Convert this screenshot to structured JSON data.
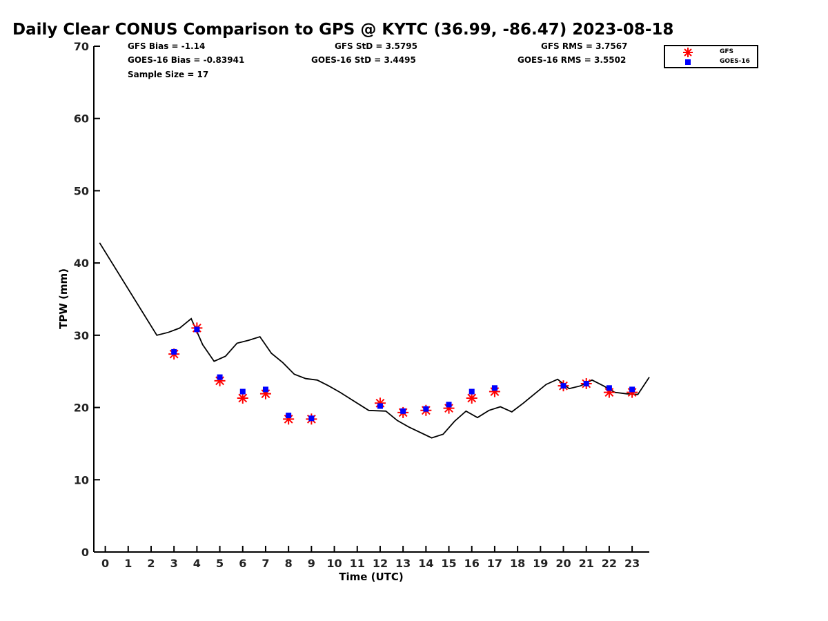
{
  "chart_data": {
    "type": "line",
    "title": "Daily Clear CONUS Comparison to GPS @ KYTC (36.99, -86.47) 2023-08-18",
    "xlabel": "Time (UTC)",
    "ylabel": "TPW (mm)",
    "xlim": [
      -0.5,
      23.75
    ],
    "ylim": [
      0,
      70
    ],
    "x_ticks": [
      0,
      1,
      2,
      3,
      4,
      5,
      6,
      7,
      8,
      9,
      10,
      11,
      12,
      13,
      14,
      15,
      16,
      17,
      18,
      19,
      20,
      21,
      22,
      23
    ],
    "y_ticks": [
      0,
      10,
      20,
      30,
      40,
      50,
      60,
      70
    ],
    "stats": {
      "gfs_bias": "GFS Bias = -1.14",
      "goes_bias": "GOES-16 Bias = -0.83941",
      "sample_size": "Sample Size = 17",
      "gfs_std": "GFS StD = 3.5795",
      "goes_std": "GOES-16 StD = 3.4495",
      "gfs_rms": "GFS RMS = 3.7567",
      "goes_rms": "GOES-16 RMS = 3.5502"
    },
    "legend": {
      "placement": "top-right",
      "entries": [
        "GFS",
        "GOES-16"
      ]
    },
    "series": [
      {
        "name": "GPS",
        "style": "line",
        "color": "#000000",
        "x": [
          -0.25,
          2.25,
          2.75,
          3.25,
          3.75,
          4.25,
          4.75,
          5.25,
          5.75,
          6.25,
          6.75,
          7.25,
          7.75,
          8.25,
          8.75,
          9.25,
          9.75,
          10.25,
          11.5,
          12.25,
          12.75,
          13.25,
          14.25,
          14.75,
          15.25,
          15.75,
          16.25,
          16.75,
          17.25,
          17.75,
          18.25,
          18.75,
          19.25,
          19.75,
          20.25,
          20.75,
          21.25,
          21.75,
          22.25,
          22.75,
          23.25,
          23.75
        ],
        "y": [
          42.8,
          30.0,
          30.4,
          31.0,
          32.3,
          28.7,
          26.4,
          27.1,
          28.9,
          29.3,
          29.8,
          27.5,
          26.2,
          24.6,
          24.0,
          23.8,
          23.0,
          22.1,
          19.6,
          19.5,
          18.2,
          17.3,
          15.8,
          16.3,
          18.1,
          19.5,
          18.6,
          19.6,
          20.1,
          19.4,
          20.6,
          21.9,
          23.2,
          23.9,
          22.6,
          23.0,
          23.8,
          23.0,
          22.1,
          21.9,
          21.8,
          24.2
        ]
      },
      {
        "name": "GFS",
        "style": "asterisk",
        "color": "#ff0000",
        "x": [
          3,
          4,
          5,
          6,
          7,
          8,
          9,
          12,
          13,
          14,
          15,
          16,
          17,
          20,
          21,
          22,
          23
        ],
        "y": [
          27.4,
          31.0,
          23.7,
          21.3,
          21.9,
          18.4,
          18.4,
          20.6,
          19.3,
          19.6,
          19.9,
          21.3,
          22.2,
          23.0,
          23.3,
          22.1,
          22.1
        ]
      },
      {
        "name": "GOES-16",
        "style": "square",
        "color": "#0000ff",
        "x": [
          3,
          4,
          5,
          6,
          7,
          8,
          9,
          12,
          13,
          14,
          15,
          16,
          17,
          20,
          21,
          22,
          23
        ],
        "y": [
          27.7,
          30.8,
          24.2,
          22.2,
          22.5,
          18.9,
          18.5,
          20.2,
          19.5,
          19.8,
          20.4,
          22.2,
          22.7,
          23.0,
          23.3,
          22.7,
          22.5
        ]
      }
    ]
  }
}
